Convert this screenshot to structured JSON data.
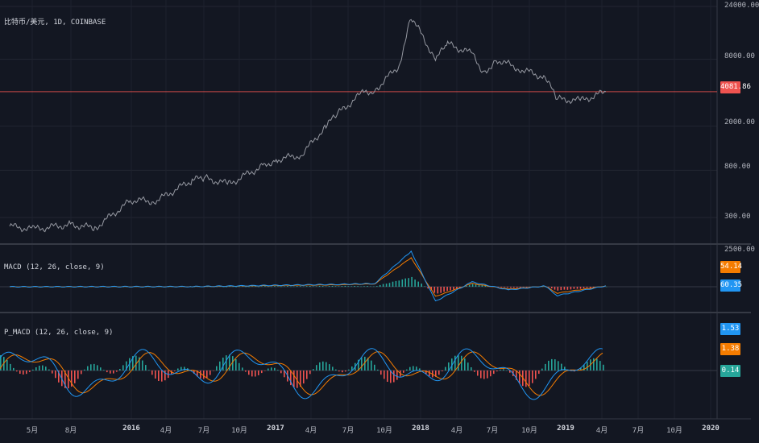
{
  "symbol_label": "比特币/美元, 1D, COINBASE",
  "price_axis_ticks": [
    "24000.00",
    "8000.00",
    "2000.00",
    "800.00",
    "300.00"
  ],
  "current_price": "4081.86",
  "macd": {
    "label": "MACD (12, 26, close, 9)",
    "top_tick": "2500.00",
    "badges": [
      {
        "value": "54.14",
        "color": "#f57c00"
      },
      {
        "value": "60.35",
        "color": "#2196f3"
      }
    ]
  },
  "p_macd": {
    "label": "P_MACD (12, 26, close, 9)",
    "badges": [
      {
        "value": "1.53",
        "color": "#2196f3"
      },
      {
        "value": "1.38",
        "color": "#f57c00"
      },
      {
        "value": "0.14",
        "color": "#26a69a"
      }
    ]
  },
  "x_ticks": [
    {
      "label": "5月",
      "bold": false
    },
    {
      "label": "8月",
      "bold": false
    },
    {
      "label": "2016",
      "bold": true
    },
    {
      "label": "4月",
      "bold": false
    },
    {
      "label": "7月",
      "bold": false
    },
    {
      "label": "10月",
      "bold": false
    },
    {
      "label": "2017",
      "bold": true
    },
    {
      "label": "4月",
      "bold": false
    },
    {
      "label": "7月",
      "bold": false
    },
    {
      "label": "10月",
      "bold": false
    },
    {
      "label": "2018",
      "bold": true
    },
    {
      "label": "4月",
      "bold": false
    },
    {
      "label": "7月",
      "bold": false
    },
    {
      "label": "10月",
      "bold": false
    },
    {
      "label": "2019",
      "bold": true
    },
    {
      "label": "4月",
      "bold": false
    },
    {
      "label": "7月",
      "bold": false
    },
    {
      "label": "10月",
      "bold": false
    },
    {
      "label": "2020",
      "bold": true
    }
  ],
  "chart_data": {
    "type": "line",
    "scale": "log",
    "grid": true,
    "colors": {
      "price": "#9598a1",
      "macd": "#2196f3",
      "signal": "#f57c00",
      "hist_pos": "#26a69a",
      "hist_neg": "#ef5350",
      "price_line": "#ef5350"
    },
    "price_series": {
      "dates": [
        "2015-03",
        "2015-05",
        "2015-08",
        "2015-10",
        "2016-01",
        "2016-03",
        "2016-06",
        "2016-07",
        "2016-09",
        "2016-12",
        "2017-01",
        "2017-03",
        "2017-05",
        "2017-06",
        "2017-08",
        "2017-09",
        "2017-11",
        "2017-12",
        "2018-02",
        "2018-03",
        "2018-05",
        "2018-06",
        "2018-07",
        "2018-09",
        "2018-11",
        "2018-12",
        "2019-02",
        "2019-04"
      ],
      "values": [
        250,
        235,
        260,
        240,
        430,
        420,
        650,
        680,
        600,
        900,
        1000,
        1100,
        2000,
        2600,
        4000,
        4200,
        7000,
        19500,
        8000,
        11000,
        9000,
        6000,
        8000,
        6500,
        5500,
        3500,
        3400,
        4081.86
      ]
    },
    "macd_series": {
      "dates": [
        "2015-03",
        "2016-06",
        "2017-06",
        "2017-09",
        "2017-12",
        "2018-02",
        "2018-05",
        "2018-08",
        "2018-11",
        "2018-12",
        "2019-04"
      ],
      "macd": [
        0,
        10,
        150,
        200,
        2200,
        -900,
        300,
        -200,
        50,
        -550,
        60.35
      ],
      "signal": [
        0,
        8,
        120,
        180,
        1800,
        -600,
        200,
        -150,
        40,
        -400,
        54.14
      ]
    }
  }
}
